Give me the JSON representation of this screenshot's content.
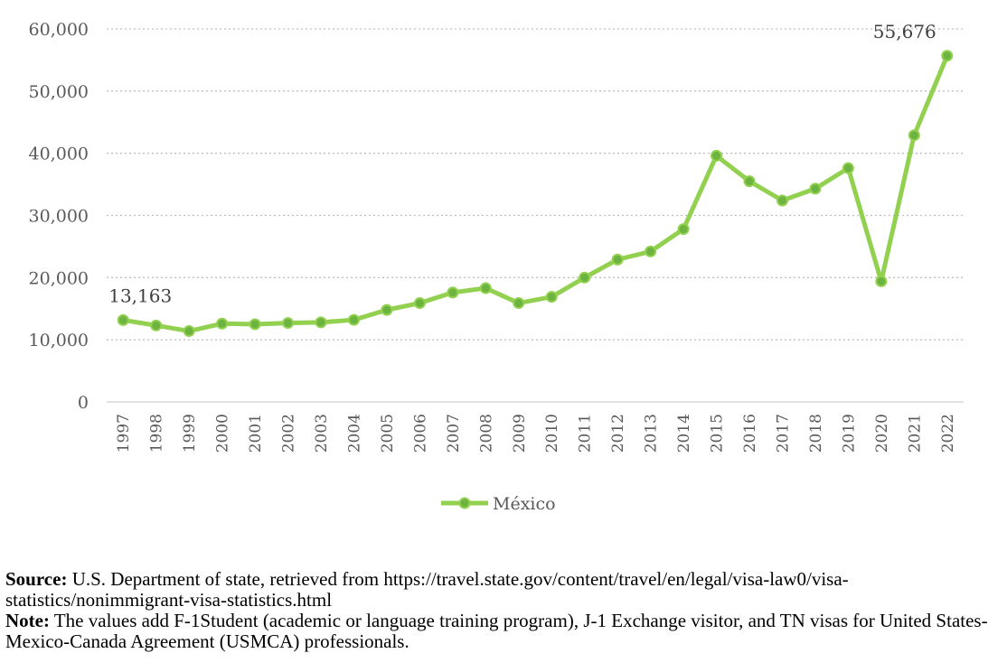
{
  "chart_data": {
    "type": "line",
    "x": [
      "1997",
      "1998",
      "1999",
      "2000",
      "2001",
      "2002",
      "2003",
      "2004",
      "2005",
      "2006",
      "2007",
      "2008",
      "2009",
      "2010",
      "2011",
      "2012",
      "2013",
      "2014",
      "2015",
      "2016",
      "2017",
      "2018",
      "2019",
      "2020",
      "2021",
      "2022"
    ],
    "series": [
      {
        "name": "México",
        "values": [
          13163,
          12300,
          11400,
          12600,
          12500,
          12700,
          12800,
          13200,
          14800,
          15900,
          17600,
          18300,
          15900,
          16900,
          20000,
          22900,
          24200,
          27800,
          39600,
          35500,
          32400,
          34300,
          37600,
          19400,
          42900,
          55676
        ],
        "color": "#92d050"
      }
    ],
    "ylim": [
      0,
      60000
    ],
    "yticks": [
      "0",
      "10,000",
      "20,000",
      "30,000",
      "40,000",
      "50,000",
      "60,000"
    ],
    "ytick_values": [
      0,
      10000,
      20000,
      30000,
      40000,
      50000,
      60000
    ],
    "data_labels": [
      {
        "index": 0,
        "text": "13,163"
      },
      {
        "index": 25,
        "text": "55,676"
      }
    ],
    "grid": true,
    "legend": "bottom"
  },
  "caption": {
    "source_label": "Source:",
    "source_text": " U.S. Department of state, retrieved from https://travel.state.gov/content/travel/en/legal/visa-law0/visa-statistics/nonimmigrant-visa-statistics.html",
    "note_label": "Note:",
    "note_text": " The values add F-1Student (academic or language training program), J-1 Exchange visitor, and TN visas for United States-Mexico-Canada Agreement (USMCA) professionals."
  }
}
